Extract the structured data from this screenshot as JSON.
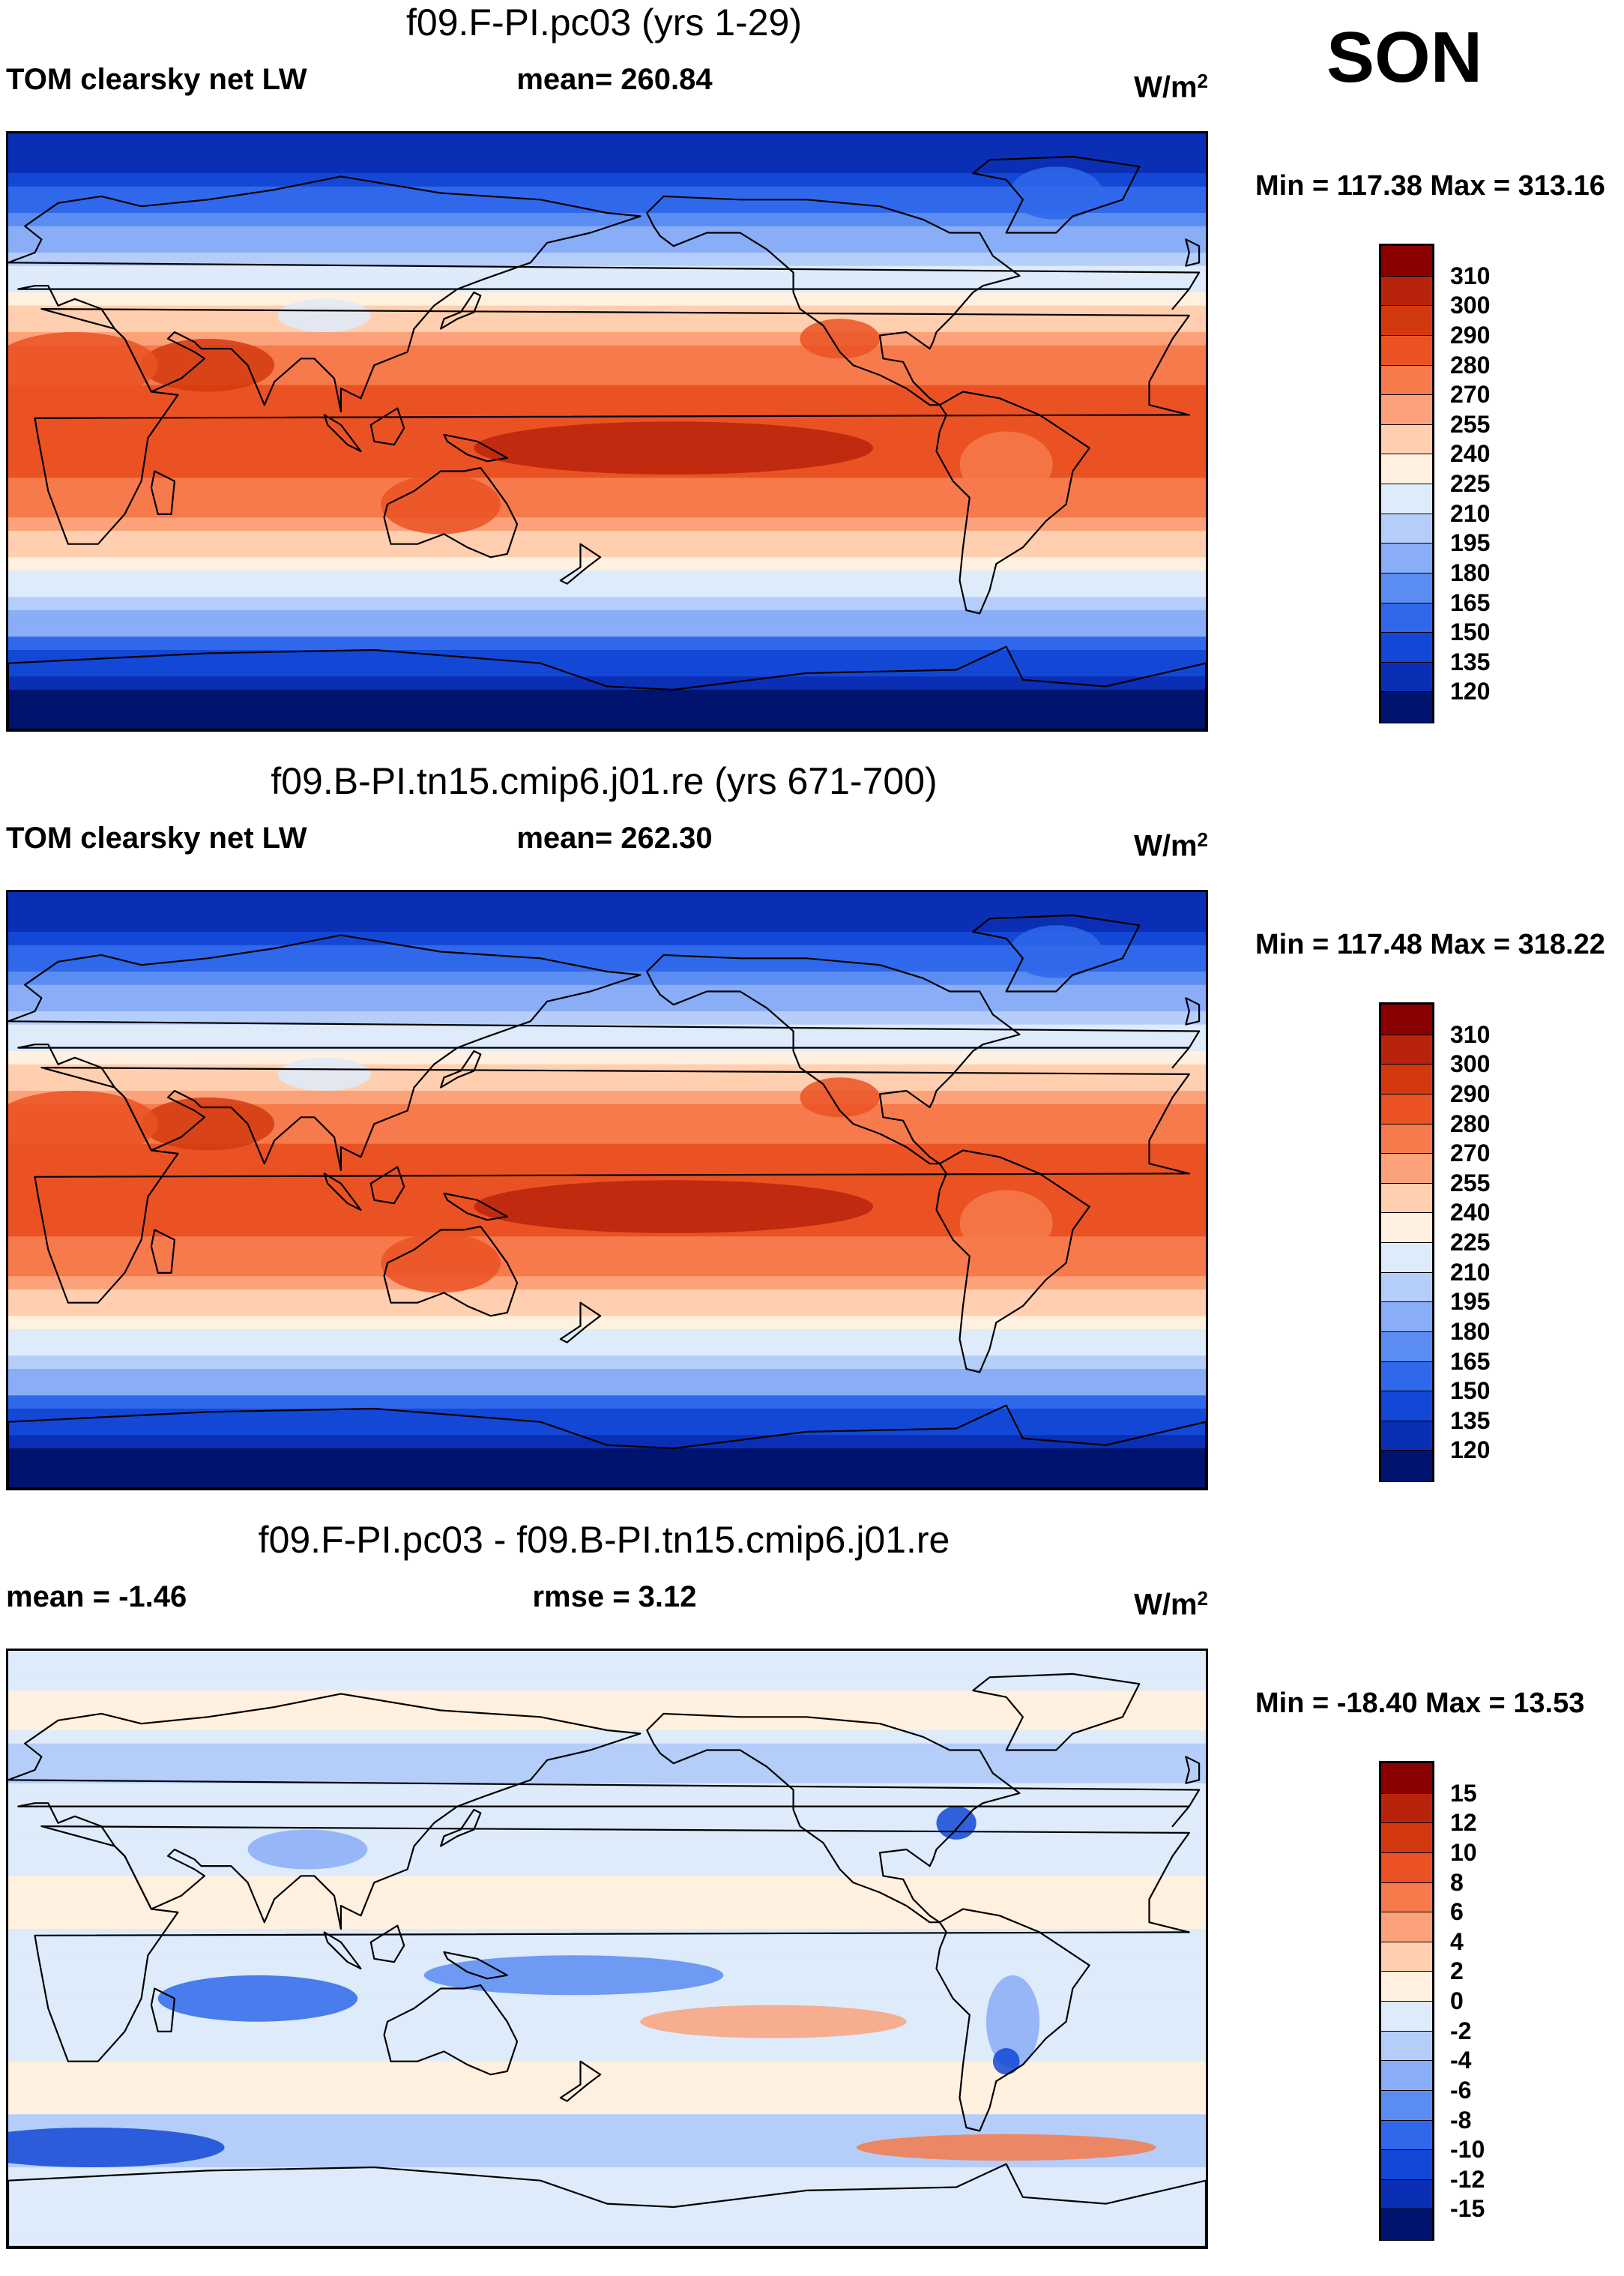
{
  "season": "SON",
  "colors": {
    "abs": [
      "#00136e",
      "#0a2fb5",
      "#1348d6",
      "#2f68ea",
      "#5b8cf2",
      "#89adf7",
      "#b5cdf9",
      "#ddebfb",
      "#fff0df",
      "#ffcfb0",
      "#fca27b",
      "#f67a4b",
      "#ea5223",
      "#d3390f",
      "#b8230c",
      "#8b0000"
    ],
    "diff": [
      "#00136e",
      "#0a2fb5",
      "#1348d6",
      "#2f68ea",
      "#5b8cf2",
      "#89adf7",
      "#b5cdf9",
      "#ddebfb",
      "#fff0df",
      "#ffcfb0",
      "#fca27b",
      "#f67a4b",
      "#ea5223",
      "#d3390f",
      "#b8230c",
      "#8b0000"
    ]
  },
  "chart_data": [
    {
      "type": "heatmap",
      "title": "f09.F-PI.pc03 (yrs 1-29)",
      "left_label": "TOM clearsky net LW",
      "mean_text": "mean= 260.84",
      "units_base": "W/m",
      "units_exp": "2",
      "min_max": "Min = 117.38 Max = 313.16",
      "levels": [
        "120",
        "135",
        "150",
        "165",
        "180",
        "195",
        "210",
        "225",
        "240",
        "255",
        "270",
        "280",
        "290",
        "300",
        "310"
      ],
      "mean": 260.84,
      "min": 117.38,
      "max": 313.16
    },
    {
      "type": "heatmap",
      "title": "f09.B-PI.tn15.cmip6.j01.re (yrs 671-700)",
      "left_label": "TOM clearsky net LW",
      "mean_text": "mean= 262.30",
      "units_base": "W/m",
      "units_exp": "2",
      "min_max": "Min = 117.48 Max = 318.22",
      "levels": [
        "120",
        "135",
        "150",
        "165",
        "180",
        "195",
        "210",
        "225",
        "240",
        "255",
        "270",
        "280",
        "290",
        "300",
        "310"
      ],
      "mean": 262.3,
      "min": 117.48,
      "max": 318.22
    },
    {
      "type": "heatmap",
      "title": "f09.F-PI.pc03 - f09.B-PI.tn15.cmip6.j01.re",
      "left_label": "mean =  -1.46",
      "mean_text": "rmse =    3.12",
      "units_base": "W/m",
      "units_exp": "2",
      "min_max": "Min = -18.40 Max =  13.53",
      "levels": [
        "-15",
        "-12",
        "-10",
        "-8",
        "-6",
        "-4",
        "-2",
        "0",
        "2",
        "4",
        "6",
        "8",
        "10",
        "12",
        "15"
      ],
      "mean": -1.46,
      "rmse": 3.12,
      "min": -18.4,
      "max": 13.53
    }
  ]
}
